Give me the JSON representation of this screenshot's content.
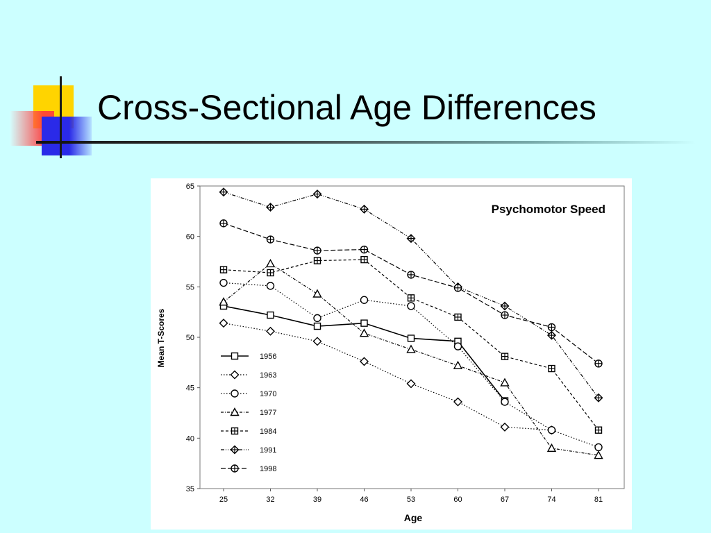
{
  "slide": {
    "title": "Cross-Sectional Age Differences"
  },
  "chart_data": {
    "type": "line",
    "title": "Psychomotor Speed",
    "xlabel": "Age",
    "ylabel": "Mean T-Scores",
    "ylim": [
      35,
      65
    ],
    "yticks": [
      35,
      40,
      45,
      50,
      55,
      60,
      65
    ],
    "x": [
      25,
      32,
      39,
      46,
      53,
      60,
      67,
      74,
      81
    ],
    "grid": false,
    "legend": "lower-left",
    "series": [
      {
        "name": "1956",
        "marker": "square",
        "dash": "solid",
        "values": [
          53.1,
          52.2,
          51.1,
          51.4,
          49.9,
          49.6,
          43.7,
          null,
          null
        ]
      },
      {
        "name": "1963",
        "marker": "diamond",
        "dash": "dotted",
        "values": [
          51.4,
          50.6,
          49.6,
          47.6,
          45.4,
          43.6,
          41.1,
          40.8,
          null
        ]
      },
      {
        "name": "1970",
        "marker": "circle",
        "dash": "dotted",
        "values": [
          55.4,
          55.1,
          51.9,
          53.7,
          53.1,
          49.1,
          43.6,
          40.8,
          39.1
        ]
      },
      {
        "name": "1977",
        "marker": "triangle",
        "dash": "dashdot",
        "values": [
          53.5,
          57.3,
          54.3,
          50.4,
          48.8,
          47.2,
          45.5,
          39.0,
          38.3
        ]
      },
      {
        "name": "1984",
        "marker": "square-plus",
        "dash": "dashed",
        "values": [
          56.7,
          56.4,
          57.6,
          57.7,
          53.9,
          52.0,
          48.1,
          46.9,
          40.8
        ]
      },
      {
        "name": "1991",
        "marker": "diamond-plus",
        "dash": "dashdotdot",
        "values": [
          64.4,
          62.9,
          64.2,
          62.7,
          59.8,
          55.0,
          53.1,
          50.2,
          44.0
        ]
      },
      {
        "name": "1998",
        "marker": "circle-plus",
        "dash": "longdash",
        "values": [
          61.3,
          59.7,
          58.6,
          58.7,
          56.2,
          54.9,
          52.2,
          51.0,
          47.4
        ]
      }
    ]
  }
}
